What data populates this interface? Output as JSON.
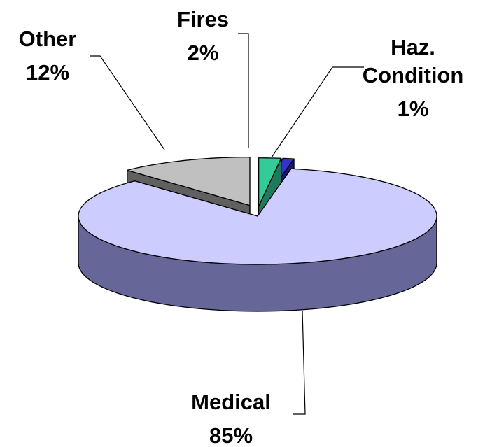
{
  "chart_data": {
    "type": "pie",
    "categories": [
      "Fires",
      "Haz. Condition",
      "Medical",
      "Other"
    ],
    "values": [
      2,
      1,
      85,
      12
    ],
    "value_labels": [
      "2%",
      "1%",
      "85%",
      "12%"
    ],
    "colors": [
      "#33cc99",
      "#3333cc",
      "#ccccff",
      "#c0c0c0"
    ],
    "side_colors": [
      "#1f7a5c",
      "#1a1a70",
      "#666699",
      "#606060"
    ]
  }
}
